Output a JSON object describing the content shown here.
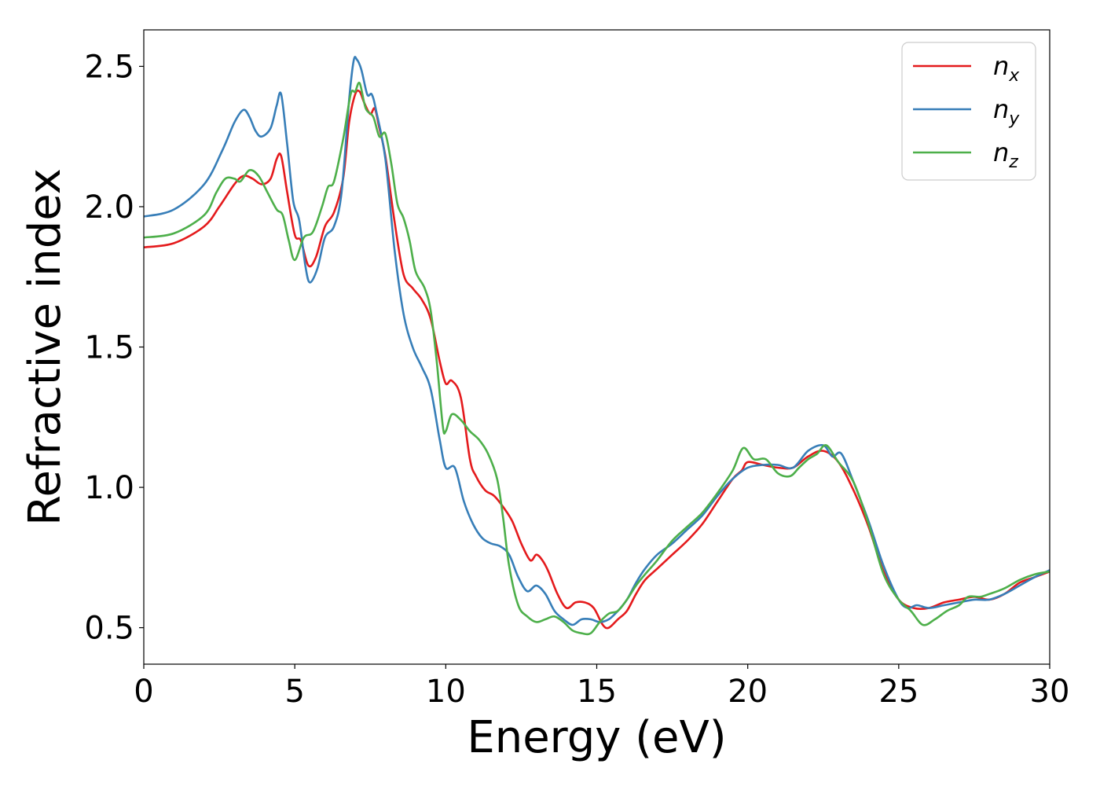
{
  "chart_data": {
    "type": "line",
    "title": "",
    "xlabel": "Energy (eV)",
    "ylabel": "Refractive index",
    "xlim": [
      0,
      30
    ],
    "ylim": [
      0.37,
      2.63
    ],
    "xticks": [
      0,
      5,
      10,
      15,
      20,
      25,
      30
    ],
    "yticks": [
      0.5,
      1.0,
      1.5,
      2.0,
      2.5
    ],
    "xtick_labels": [
      "0",
      "5",
      "10",
      "15",
      "20",
      "25",
      "30"
    ],
    "ytick_labels": [
      "0.5",
      "1.0",
      "1.5",
      "2.0",
      "2.5"
    ],
    "grid": false,
    "legend_position": "top-right",
    "series": [
      {
        "name": "n_x",
        "label_base": "n",
        "label_sub": "x",
        "color": "#e41a1c",
        "points": [
          [
            0,
            1.855
          ],
          [
            1,
            1.87
          ],
          [
            2,
            1.93
          ],
          [
            2.5,
            2.0
          ],
          [
            3,
            2.08
          ],
          [
            3.3,
            2.11
          ],
          [
            3.6,
            2.1
          ],
          [
            3.9,
            2.08
          ],
          [
            4.2,
            2.1
          ],
          [
            4.4,
            2.17
          ],
          [
            4.55,
            2.18
          ],
          [
            4.75,
            2.05
          ],
          [
            5.0,
            1.9
          ],
          [
            5.2,
            1.88
          ],
          [
            5.45,
            1.79
          ],
          [
            5.7,
            1.82
          ],
          [
            6.0,
            1.93
          ],
          [
            6.3,
            1.98
          ],
          [
            6.6,
            2.1
          ],
          [
            6.8,
            2.3
          ],
          [
            7.0,
            2.4
          ],
          [
            7.15,
            2.41
          ],
          [
            7.3,
            2.37
          ],
          [
            7.5,
            2.33
          ],
          [
            7.65,
            2.35
          ],
          [
            7.8,
            2.28
          ],
          [
            8.0,
            2.18
          ],
          [
            8.3,
            1.95
          ],
          [
            8.6,
            1.76
          ],
          [
            8.9,
            1.71
          ],
          [
            9.2,
            1.67
          ],
          [
            9.5,
            1.6
          ],
          [
            9.8,
            1.45
          ],
          [
            10.0,
            1.37
          ],
          [
            10.2,
            1.38
          ],
          [
            10.5,
            1.32
          ],
          [
            10.8,
            1.1
          ],
          [
            11.0,
            1.04
          ],
          [
            11.3,
            0.99
          ],
          [
            11.6,
            0.97
          ],
          [
            11.9,
            0.93
          ],
          [
            12.2,
            0.88
          ],
          [
            12.5,
            0.8
          ],
          [
            12.8,
            0.74
          ],
          [
            13.0,
            0.76
          ],
          [
            13.2,
            0.74
          ],
          [
            13.4,
            0.7
          ],
          [
            13.7,
            0.62
          ],
          [
            14.0,
            0.57
          ],
          [
            14.3,
            0.59
          ],
          [
            14.6,
            0.59
          ],
          [
            14.9,
            0.57
          ],
          [
            15.2,
            0.51
          ],
          [
            15.4,
            0.5
          ],
          [
            15.7,
            0.53
          ],
          [
            16.0,
            0.56
          ],
          [
            16.3,
            0.62
          ],
          [
            16.6,
            0.67
          ],
          [
            17.0,
            0.71
          ],
          [
            17.5,
            0.76
          ],
          [
            18.0,
            0.81
          ],
          [
            18.5,
            0.87
          ],
          [
            19.0,
            0.95
          ],
          [
            19.5,
            1.03
          ],
          [
            19.8,
            1.06
          ],
          [
            20.0,
            1.09
          ],
          [
            20.5,
            1.08
          ],
          [
            21.0,
            1.07
          ],
          [
            21.5,
            1.07
          ],
          [
            22.0,
            1.11
          ],
          [
            22.5,
            1.13
          ],
          [
            23.0,
            1.09
          ],
          [
            23.5,
            0.99
          ],
          [
            24.0,
            0.86
          ],
          [
            24.5,
            0.7
          ],
          [
            25.0,
            0.6
          ],
          [
            25.5,
            0.57
          ],
          [
            26.0,
            0.57
          ],
          [
            26.5,
            0.59
          ],
          [
            27.0,
            0.6
          ],
          [
            27.5,
            0.61
          ],
          [
            28.0,
            0.6
          ],
          [
            28.5,
            0.62
          ],
          [
            29.0,
            0.66
          ],
          [
            29.5,
            0.68
          ],
          [
            30.0,
            0.7
          ]
        ]
      },
      {
        "name": "n_y",
        "label_base": "n",
        "label_sub": "y",
        "color": "#377eb8",
        "points": [
          [
            0,
            1.965
          ],
          [
            1,
            1.99
          ],
          [
            2,
            2.08
          ],
          [
            2.6,
            2.2
          ],
          [
            3.0,
            2.3
          ],
          [
            3.3,
            2.345
          ],
          [
            3.5,
            2.32
          ],
          [
            3.7,
            2.27
          ],
          [
            3.9,
            2.25
          ],
          [
            4.2,
            2.28
          ],
          [
            4.4,
            2.36
          ],
          [
            4.55,
            2.4
          ],
          [
            4.75,
            2.22
          ],
          [
            4.95,
            2.02
          ],
          [
            5.15,
            1.95
          ],
          [
            5.35,
            1.79
          ],
          [
            5.5,
            1.73
          ],
          [
            5.75,
            1.78
          ],
          [
            6.0,
            1.89
          ],
          [
            6.3,
            1.93
          ],
          [
            6.55,
            2.05
          ],
          [
            6.8,
            2.38
          ],
          [
            6.95,
            2.52
          ],
          [
            7.05,
            2.525
          ],
          [
            7.2,
            2.49
          ],
          [
            7.4,
            2.4
          ],
          [
            7.55,
            2.4
          ],
          [
            7.7,
            2.34
          ],
          [
            8.0,
            2.17
          ],
          [
            8.3,
            1.85
          ],
          [
            8.6,
            1.62
          ],
          [
            8.9,
            1.5
          ],
          [
            9.2,
            1.43
          ],
          [
            9.5,
            1.35
          ],
          [
            9.8,
            1.17
          ],
          [
            10.0,
            1.07
          ],
          [
            10.3,
            1.07
          ],
          [
            10.6,
            0.95
          ],
          [
            10.9,
            0.87
          ],
          [
            11.2,
            0.82
          ],
          [
            11.5,
            0.8
          ],
          [
            11.8,
            0.79
          ],
          [
            12.1,
            0.76
          ],
          [
            12.4,
            0.68
          ],
          [
            12.7,
            0.63
          ],
          [
            13.0,
            0.65
          ],
          [
            13.3,
            0.62
          ],
          [
            13.6,
            0.56
          ],
          [
            13.9,
            0.53
          ],
          [
            14.2,
            0.51
          ],
          [
            14.5,
            0.53
          ],
          [
            14.8,
            0.53
          ],
          [
            15.1,
            0.52
          ],
          [
            15.4,
            0.53
          ],
          [
            15.7,
            0.56
          ],
          [
            16.0,
            0.6
          ],
          [
            16.3,
            0.66
          ],
          [
            16.6,
            0.71
          ],
          [
            17.0,
            0.76
          ],
          [
            17.5,
            0.8
          ],
          [
            18.0,
            0.85
          ],
          [
            18.5,
            0.9
          ],
          [
            19.0,
            0.97
          ],
          [
            19.5,
            1.03
          ],
          [
            20.0,
            1.07
          ],
          [
            20.5,
            1.08
          ],
          [
            21.0,
            1.08
          ],
          [
            21.5,
            1.07
          ],
          [
            22.0,
            1.13
          ],
          [
            22.5,
            1.15
          ],
          [
            22.8,
            1.11
          ],
          [
            23.1,
            1.12
          ],
          [
            23.5,
            1.02
          ],
          [
            24.0,
            0.88
          ],
          [
            24.5,
            0.72
          ],
          [
            25.0,
            0.6
          ],
          [
            25.3,
            0.57
          ],
          [
            25.6,
            0.58
          ],
          [
            26.0,
            0.57
          ],
          [
            26.5,
            0.58
          ],
          [
            27.0,
            0.59
          ],
          [
            27.5,
            0.6
          ],
          [
            28.0,
            0.6
          ],
          [
            28.5,
            0.62
          ],
          [
            29.0,
            0.65
          ],
          [
            29.5,
            0.68
          ],
          [
            30.0,
            0.705
          ]
        ]
      },
      {
        "name": "n_z",
        "label_base": "n",
        "label_sub": "z",
        "color": "#4daf4a",
        "points": [
          [
            0,
            1.89
          ],
          [
            1,
            1.905
          ],
          [
            2,
            1.97
          ],
          [
            2.4,
            2.05
          ],
          [
            2.7,
            2.1
          ],
          [
            3.0,
            2.1
          ],
          [
            3.2,
            2.09
          ],
          [
            3.5,
            2.13
          ],
          [
            3.8,
            2.11
          ],
          [
            4.1,
            2.05
          ],
          [
            4.4,
            1.99
          ],
          [
            4.6,
            1.97
          ],
          [
            4.8,
            1.88
          ],
          [
            5.0,
            1.81
          ],
          [
            5.3,
            1.89
          ],
          [
            5.6,
            1.91
          ],
          [
            5.9,
            2.0
          ],
          [
            6.1,
            2.07
          ],
          [
            6.3,
            2.09
          ],
          [
            6.6,
            2.24
          ],
          [
            6.85,
            2.4
          ],
          [
            7.0,
            2.41
          ],
          [
            7.15,
            2.44
          ],
          [
            7.35,
            2.35
          ],
          [
            7.6,
            2.32
          ],
          [
            7.8,
            2.25
          ],
          [
            8.0,
            2.26
          ],
          [
            8.2,
            2.15
          ],
          [
            8.4,
            2.01
          ],
          [
            8.6,
            1.96
          ],
          [
            8.8,
            1.88
          ],
          [
            9.0,
            1.77
          ],
          [
            9.3,
            1.71
          ],
          [
            9.5,
            1.63
          ],
          [
            9.7,
            1.45
          ],
          [
            9.9,
            1.22
          ],
          [
            10.0,
            1.2
          ],
          [
            10.2,
            1.26
          ],
          [
            10.5,
            1.24
          ],
          [
            10.8,
            1.2
          ],
          [
            11.1,
            1.17
          ],
          [
            11.4,
            1.12
          ],
          [
            11.7,
            1.03
          ],
          [
            11.9,
            0.89
          ],
          [
            12.1,
            0.72
          ],
          [
            12.4,
            0.58
          ],
          [
            12.7,
            0.54
          ],
          [
            13.0,
            0.52
          ],
          [
            13.3,
            0.53
          ],
          [
            13.6,
            0.54
          ],
          [
            13.9,
            0.52
          ],
          [
            14.2,
            0.49
          ],
          [
            14.5,
            0.48
          ],
          [
            14.8,
            0.48
          ],
          [
            15.1,
            0.52
          ],
          [
            15.4,
            0.55
          ],
          [
            15.7,
            0.56
          ],
          [
            16.0,
            0.6
          ],
          [
            16.3,
            0.65
          ],
          [
            16.6,
            0.69
          ],
          [
            17.0,
            0.74
          ],
          [
            17.5,
            0.81
          ],
          [
            18.0,
            0.86
          ],
          [
            18.5,
            0.91
          ],
          [
            19.0,
            0.98
          ],
          [
            19.5,
            1.06
          ],
          [
            19.85,
            1.14
          ],
          [
            20.2,
            1.1
          ],
          [
            20.6,
            1.1
          ],
          [
            21.0,
            1.05
          ],
          [
            21.4,
            1.04
          ],
          [
            21.7,
            1.07
          ],
          [
            22.0,
            1.1
          ],
          [
            22.3,
            1.12
          ],
          [
            22.6,
            1.15
          ],
          [
            23.0,
            1.09
          ],
          [
            23.5,
            1.02
          ],
          [
            24.0,
            0.87
          ],
          [
            24.5,
            0.69
          ],
          [
            25.0,
            0.6
          ],
          [
            25.4,
            0.56
          ],
          [
            25.8,
            0.51
          ],
          [
            26.2,
            0.53
          ],
          [
            26.6,
            0.56
          ],
          [
            27.0,
            0.58
          ],
          [
            27.3,
            0.61
          ],
          [
            27.7,
            0.61
          ],
          [
            28.0,
            0.62
          ],
          [
            28.5,
            0.64
          ],
          [
            29.0,
            0.67
          ],
          [
            29.5,
            0.69
          ],
          [
            30.0,
            0.7
          ]
        ]
      }
    ]
  }
}
